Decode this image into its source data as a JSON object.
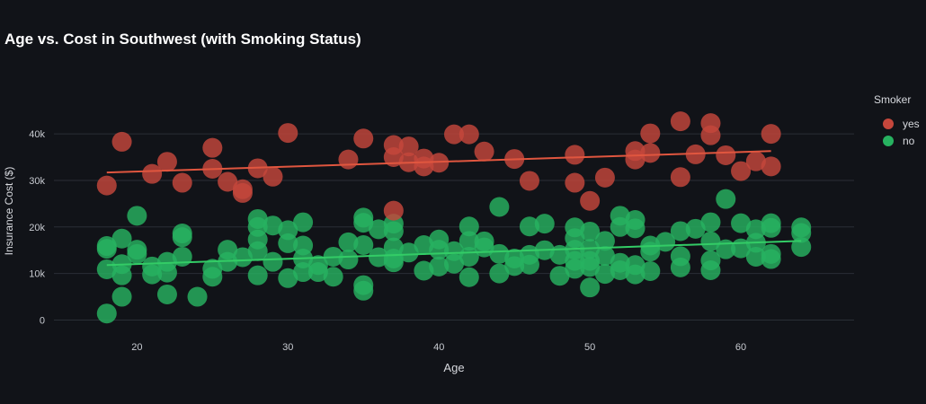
{
  "colors": {
    "background": "#111318",
    "grid": "#2a2e36",
    "smoker_yes": "#c5473c",
    "smoker_no": "#27b260",
    "trend_yes": "#e0563f",
    "trend_no": "#33cc66"
  },
  "chart_data": {
    "type": "scatter",
    "title": "Age vs. Cost in Southwest (with Smoking Status)",
    "xlabel": "Age",
    "ylabel": "Insurance Cost ($)",
    "xlim": [
      14.5,
      67.5
    ],
    "ylim": [
      -3000,
      46000
    ],
    "x_ticks": [
      20,
      30,
      40,
      50,
      60
    ],
    "x_tick_labels": [
      "20",
      "30",
      "40",
      "50",
      "60"
    ],
    "y_ticks": [
      0,
      10000,
      20000,
      30000,
      40000
    ],
    "y_tick_labels": [
      "0",
      "10k",
      "20k",
      "30k",
      "40k"
    ],
    "grid": true,
    "legend_title": "Smoker",
    "legend_position": "right",
    "series": [
      {
        "name": "yes",
        "color": "#c5473c",
        "trend": {
          "x": [
            18,
            62
          ],
          "y": [
            31700,
            36300
          ]
        },
        "points": [
          [
            18,
            28900
          ],
          [
            19,
            38300
          ],
          [
            21,
            31400
          ],
          [
            22,
            34000
          ],
          [
            23,
            29500
          ],
          [
            25,
            37000
          ],
          [
            25,
            32500
          ],
          [
            26,
            29700
          ],
          [
            27,
            28100
          ],
          [
            27,
            27300
          ],
          [
            28,
            32600
          ],
          [
            29,
            30800
          ],
          [
            30,
            40200
          ],
          [
            34,
            34500
          ],
          [
            35,
            39000
          ],
          [
            37,
            37600
          ],
          [
            37,
            35000
          ],
          [
            37,
            23500
          ],
          [
            38,
            37300
          ],
          [
            38,
            33900
          ],
          [
            39,
            34700
          ],
          [
            39,
            33000
          ],
          [
            40,
            33800
          ],
          [
            41,
            39900
          ],
          [
            42,
            39900
          ],
          [
            43,
            36200
          ],
          [
            45,
            34600
          ],
          [
            46,
            29900
          ],
          [
            49,
            29500
          ],
          [
            49,
            35500
          ],
          [
            50,
            25600
          ],
          [
            51,
            30600
          ],
          [
            53,
            36300
          ],
          [
            53,
            34500
          ],
          [
            54,
            40100
          ],
          [
            54,
            35900
          ],
          [
            56,
            42700
          ],
          [
            56,
            30700
          ],
          [
            57,
            35600
          ],
          [
            58,
            42300
          ],
          [
            58,
            39700
          ],
          [
            59,
            35400
          ],
          [
            60,
            32000
          ],
          [
            61,
            34100
          ],
          [
            62,
            40000
          ],
          [
            62,
            33000
          ]
        ]
      },
      {
        "name": "no",
        "color": "#27b260",
        "trend": {
          "x": [
            18,
            64
          ],
          "y": [
            11800,
            17000
          ]
        },
        "points": [
          [
            18,
            1400
          ],
          [
            18,
            10900
          ],
          [
            18,
            15900
          ],
          [
            18,
            15300
          ],
          [
            19,
            5000
          ],
          [
            19,
            9600
          ],
          [
            19,
            12000
          ],
          [
            19,
            17500
          ],
          [
            20,
            22400
          ],
          [
            20,
            15100
          ],
          [
            20,
            14200
          ],
          [
            21,
            11500
          ],
          [
            21,
            9800
          ],
          [
            22,
            12500
          ],
          [
            22,
            10200
          ],
          [
            22,
            5500
          ],
          [
            23,
            18600
          ],
          [
            23,
            17800
          ],
          [
            23,
            13600
          ],
          [
            24,
            5000
          ],
          [
            25,
            11000
          ],
          [
            25,
            9300
          ],
          [
            26,
            12500
          ],
          [
            26,
            15100
          ],
          [
            27,
            13500
          ],
          [
            28,
            21700
          ],
          [
            28,
            20000
          ],
          [
            28,
            17300
          ],
          [
            28,
            14800
          ],
          [
            28,
            9600
          ],
          [
            29,
            20300
          ],
          [
            29,
            12500
          ],
          [
            30,
            19300
          ],
          [
            30,
            16500
          ],
          [
            30,
            9000
          ],
          [
            31,
            21000
          ],
          [
            31,
            16000
          ],
          [
            31,
            13200
          ],
          [
            31,
            10300
          ],
          [
            32,
            11800
          ],
          [
            32,
            10300
          ],
          [
            33,
            13600
          ],
          [
            33,
            9300
          ],
          [
            34,
            16700
          ],
          [
            34,
            13000
          ],
          [
            35,
            22000
          ],
          [
            35,
            20900
          ],
          [
            35,
            16100
          ],
          [
            35,
            7500
          ],
          [
            35,
            6300
          ],
          [
            36,
            19500
          ],
          [
            36,
            13500
          ],
          [
            37,
            20700
          ],
          [
            37,
            19100
          ],
          [
            37,
            15600
          ],
          [
            37,
            13200
          ],
          [
            37,
            12400
          ],
          [
            38,
            14500
          ],
          [
            39,
            16100
          ],
          [
            39,
            10600
          ],
          [
            40,
            17300
          ],
          [
            40,
            15100
          ],
          [
            40,
            11500
          ],
          [
            41,
            14800
          ],
          [
            41,
            12100
          ],
          [
            42,
            20100
          ],
          [
            42,
            17000
          ],
          [
            42,
            13600
          ],
          [
            42,
            9200
          ],
          [
            43,
            16900
          ],
          [
            43,
            15600
          ],
          [
            44,
            24300
          ],
          [
            44,
            14200
          ],
          [
            44,
            10000
          ],
          [
            45,
            13200
          ],
          [
            45,
            11600
          ],
          [
            46,
            20100
          ],
          [
            46,
            14000
          ],
          [
            46,
            11900
          ],
          [
            47,
            20700
          ],
          [
            47,
            15000
          ],
          [
            48,
            14000
          ],
          [
            48,
            9500
          ],
          [
            49,
            19900
          ],
          [
            49,
            17600
          ],
          [
            49,
            15100
          ],
          [
            49,
            12700
          ],
          [
            49,
            11000
          ],
          [
            50,
            19000
          ],
          [
            50,
            15300
          ],
          [
            50,
            12700
          ],
          [
            50,
            11400
          ],
          [
            50,
            7000
          ],
          [
            51,
            17000
          ],
          [
            51,
            13800
          ],
          [
            51,
            9900
          ],
          [
            52,
            22400
          ],
          [
            52,
            20000
          ],
          [
            52,
            12300
          ],
          [
            52,
            10700
          ],
          [
            53,
            21500
          ],
          [
            53,
            19700
          ],
          [
            53,
            11800
          ],
          [
            53,
            9800
          ],
          [
            54,
            16000
          ],
          [
            54,
            14700
          ],
          [
            54,
            10500
          ],
          [
            55,
            16800
          ],
          [
            56,
            19100
          ],
          [
            56,
            13700
          ],
          [
            56,
            11300
          ],
          [
            57,
            19600
          ],
          [
            58,
            21000
          ],
          [
            58,
            16900
          ],
          [
            58,
            12800
          ],
          [
            58,
            10700
          ],
          [
            59,
            26000
          ],
          [
            59,
            15200
          ],
          [
            60,
            20800
          ],
          [
            60,
            15400
          ],
          [
            61,
            19500
          ],
          [
            61,
            16600
          ],
          [
            61,
            13600
          ],
          [
            62,
            20800
          ],
          [
            62,
            19800
          ],
          [
            62,
            14200
          ],
          [
            62,
            13100
          ],
          [
            64,
            19900
          ],
          [
            64,
            18700
          ],
          [
            64,
            15700
          ]
        ]
      }
    ]
  }
}
